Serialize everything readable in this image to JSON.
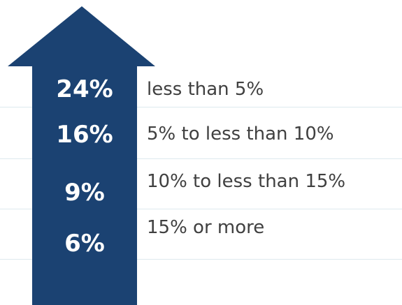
{
  "colors": {
    "arrow_fill": "#1b4272",
    "divider": "#dde9ee",
    "label_text": "#404040",
    "value_text": "#ffffff"
  },
  "rows": [
    {
      "value": "24%",
      "label": "less than 5%"
    },
    {
      "value": "16%",
      "label": "5% to less than 10%"
    },
    {
      "value": "9%",
      "label": "10% to less than 15%"
    },
    {
      "value": "6%",
      "label": "15% or more"
    }
  ]
}
